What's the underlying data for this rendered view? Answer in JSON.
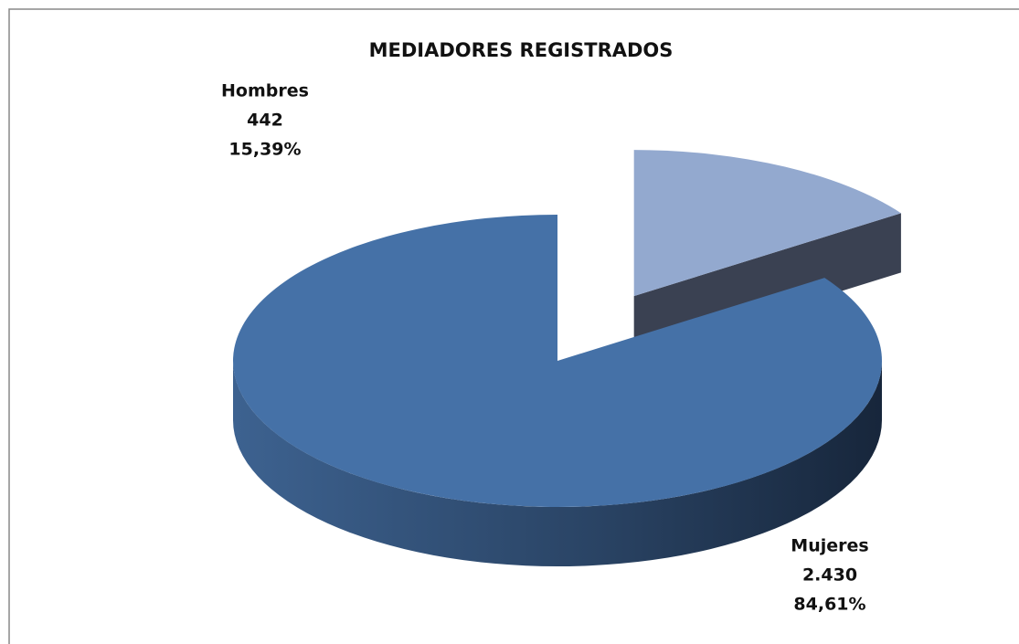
{
  "chart_data": {
    "type": "pie3d",
    "title": "MEDIADORES REGISTRADOS",
    "categories": [
      "Hombres",
      "Mujeres"
    ],
    "values": [
      442,
      2430
    ],
    "value_labels": [
      "442",
      "2.430"
    ],
    "percents": [
      15.39,
      84.61
    ],
    "percent_labels": [
      "15,39%",
      "84,61%"
    ],
    "colors": [
      "#93a9cf",
      "#4571a7"
    ],
    "exploded": [
      "Hombres"
    ]
  }
}
